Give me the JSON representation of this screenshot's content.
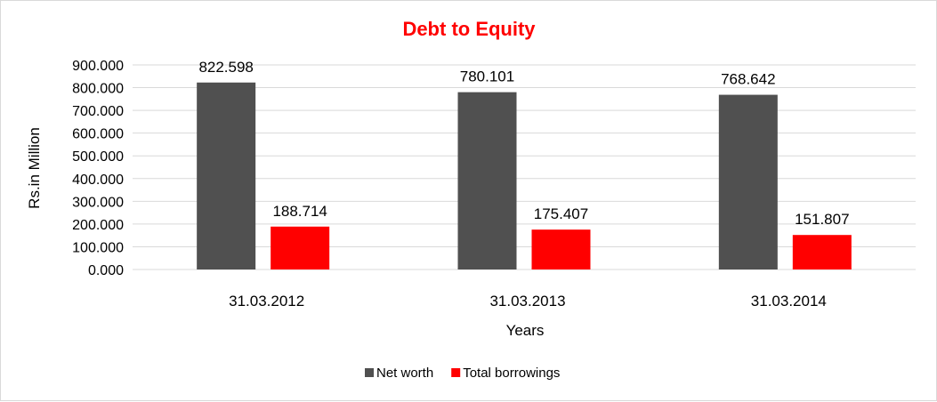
{
  "chart_data": {
    "type": "bar",
    "title": "Debt to Equity",
    "xlabel": "Years",
    "ylabel": "Rs.in Million",
    "categories": [
      "31.03.2012",
      "31.03.2013",
      "31.03.2014"
    ],
    "series": [
      {
        "name": "Net worth",
        "color": "#505050",
        "values": [
          822.598,
          780.101,
          768.642
        ],
        "labels": [
          "822.598",
          "780.101",
          "768.642"
        ]
      },
      {
        "name": "Total borrowings",
        "color": "#ff0000",
        "values": [
          188.714,
          175.407,
          151.807
        ],
        "labels": [
          "188.714",
          "175.407",
          "151.807"
        ]
      }
    ],
    "ylim": [
      0,
      900
    ],
    "yticks": [
      "0.000",
      "100.000",
      "200.000",
      "300.000",
      "400.000",
      "500.000",
      "600.000",
      "700.000",
      "800.000",
      "900.000"
    ],
    "ytick_values": [
      0,
      100,
      200,
      300,
      400,
      500,
      600,
      700,
      800,
      900
    ],
    "grid": true,
    "legend_position": "bottom",
    "title_color": "#ff0000"
  }
}
